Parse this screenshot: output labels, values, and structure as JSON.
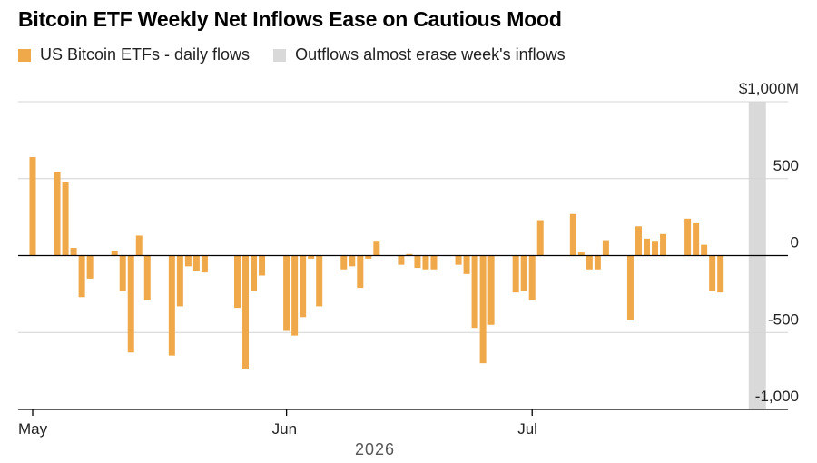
{
  "chart_data": {
    "type": "bar",
    "title": "Bitcoin ETF Weekly Net Inflows Ease on Cautious Mood",
    "legend": [
      {
        "name": "US Bitcoin ETFs - daily flows",
        "color": "#f0a94a"
      },
      {
        "name": "Outflows almost erase week's inflows",
        "color": "#d9d9d9"
      }
    ],
    "legend_placement": "top-left",
    "ylim": [
      -1000,
      1000
    ],
    "y_ticks": [
      {
        "value": 1000,
        "label": "$1,000M"
      },
      {
        "value": 500,
        "label": "500"
      },
      {
        "value": 0,
        "label": "0"
      },
      {
        "value": -500,
        "label": "-500"
      },
      {
        "value": -1000,
        "label": "-1,000"
      }
    ],
    "x_range": [
      "2026-05-01",
      "2026-07-30"
    ],
    "x_ticks": [
      {
        "date": "2026-05-01",
        "label": "May"
      },
      {
        "date": "2026-06-01",
        "label": "Jun"
      },
      {
        "date": "2026-07-01",
        "label": "Jul"
      }
    ],
    "xlabel": "2026",
    "highlight_band": {
      "from": "2026-07-28",
      "to": "2026-07-29",
      "color": "#d9d9d9"
    },
    "grid": true,
    "series": [
      {
        "color": "#f0a94a",
        "points": [
          {
            "date": "2026-05-01",
            "value": 640
          },
          {
            "date": "2026-05-04",
            "value": 540
          },
          {
            "date": "2026-05-05",
            "value": 475
          },
          {
            "date": "2026-05-06",
            "value": 50
          },
          {
            "date": "2026-05-07",
            "value": -270
          },
          {
            "date": "2026-05-08",
            "value": -150
          },
          {
            "date": "2026-05-11",
            "value": 30
          },
          {
            "date": "2026-05-12",
            "value": -230
          },
          {
            "date": "2026-05-13",
            "value": -630
          },
          {
            "date": "2026-05-14",
            "value": 130
          },
          {
            "date": "2026-05-15",
            "value": -290
          },
          {
            "date": "2026-05-18",
            "value": -650
          },
          {
            "date": "2026-05-19",
            "value": -330
          },
          {
            "date": "2026-05-20",
            "value": -70
          },
          {
            "date": "2026-05-21",
            "value": -100
          },
          {
            "date": "2026-05-22",
            "value": -110
          },
          {
            "date": "2026-05-26",
            "value": -340
          },
          {
            "date": "2026-05-27",
            "value": -740
          },
          {
            "date": "2026-05-28",
            "value": -230
          },
          {
            "date": "2026-05-29",
            "value": -130
          },
          {
            "date": "2026-06-01",
            "value": -490
          },
          {
            "date": "2026-06-02",
            "value": -520
          },
          {
            "date": "2026-06-03",
            "value": -400
          },
          {
            "date": "2026-06-04",
            "value": -20
          },
          {
            "date": "2026-06-05",
            "value": -330
          },
          {
            "date": "2026-06-08",
            "value": -90
          },
          {
            "date": "2026-06-09",
            "value": -70
          },
          {
            "date": "2026-06-10",
            "value": -210
          },
          {
            "date": "2026-06-11",
            "value": -20
          },
          {
            "date": "2026-06-12",
            "value": 90
          },
          {
            "date": "2026-06-15",
            "value": -60
          },
          {
            "date": "2026-06-16",
            "value": 10
          },
          {
            "date": "2026-06-17",
            "value": -80
          },
          {
            "date": "2026-06-18",
            "value": -90
          },
          {
            "date": "2026-06-19",
            "value": -90
          },
          {
            "date": "2026-06-22",
            "value": -60
          },
          {
            "date": "2026-06-23",
            "value": -120
          },
          {
            "date": "2026-06-24",
            "value": -470
          },
          {
            "date": "2026-06-25",
            "value": -700
          },
          {
            "date": "2026-06-26",
            "value": -450
          },
          {
            "date": "2026-06-29",
            "value": -240
          },
          {
            "date": "2026-06-30",
            "value": -230
          },
          {
            "date": "2026-07-01",
            "value": -290
          },
          {
            "date": "2026-07-02",
            "value": 230
          },
          {
            "date": "2026-07-06",
            "value": 270
          },
          {
            "date": "2026-07-07",
            "value": 20
          },
          {
            "date": "2026-07-08",
            "value": -90
          },
          {
            "date": "2026-07-09",
            "value": -90
          },
          {
            "date": "2026-07-10",
            "value": 100
          },
          {
            "date": "2026-07-13",
            "value": -420
          },
          {
            "date": "2026-07-14",
            "value": 190
          },
          {
            "date": "2026-07-15",
            "value": 110
          },
          {
            "date": "2026-07-16",
            "value": 90
          },
          {
            "date": "2026-07-17",
            "value": 140
          },
          {
            "date": "2026-07-20",
            "value": 240
          },
          {
            "date": "2026-07-21",
            "value": 210
          },
          {
            "date": "2026-07-22",
            "value": 70
          },
          {
            "date": "2026-07-23",
            "value": -230
          },
          {
            "date": "2026-07-24",
            "value": -240
          }
        ]
      }
    ]
  }
}
